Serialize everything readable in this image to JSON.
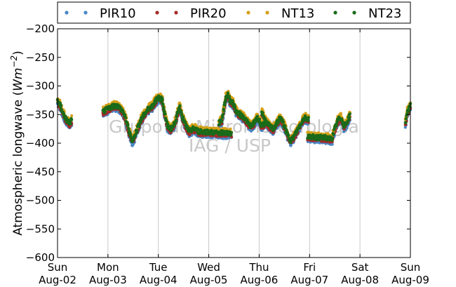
{
  "chart_data": {
    "type": "scatter",
    "ylabel_text": "Atmospheric longwave (",
    "ylabel_unit_base": "Wm",
    "ylabel_unit_exp": "−2",
    "ylabel_close": ")",
    "ylim": [
      -600,
      -200
    ],
    "yticks": [
      -200,
      -250,
      -300,
      -350,
      -400,
      -450,
      -500,
      -550,
      -600
    ],
    "ytick_labels": [
      "−200",
      "−250",
      "−300",
      "−350",
      "−400",
      "−450",
      "−500",
      "−550",
      "−600"
    ],
    "xlim": [
      0,
      7
    ],
    "xticks": [
      {
        "day": "Sun",
        "date": "Aug-02"
      },
      {
        "day": "Mon",
        "date": "Aug-03"
      },
      {
        "day": "Tue",
        "date": "Aug-04"
      },
      {
        "day": "Wed",
        "date": "Aug-05"
      },
      {
        "day": "Thu",
        "date": "Aug-06"
      },
      {
        "day": "Fri",
        "date": "Aug-07"
      },
      {
        "day": "Sat",
        "date": "Aug-08"
      },
      {
        "day": "Sun",
        "date": "Aug-09"
      }
    ],
    "grid": "vertical",
    "legend_position": "top",
    "watermark": [
      "Grupo de Micrometeorologia",
      "IAG / USP"
    ],
    "series": [
      {
        "name": "PIR10",
        "color": "#4a86c5",
        "offset": -6
      },
      {
        "name": "PIR20",
        "color": "#a52a2a",
        "offset": -3
      },
      {
        "name": "NT13",
        "color": "#d4a017",
        "offset": 4
      },
      {
        "name": "NT23",
        "color": "#1a6b1a",
        "offset": 0
      }
    ],
    "segments": [
      {
        "x": [
          0.0,
          0.06,
          0.12,
          0.18,
          0.24,
          0.28
        ],
        "y": [
          -325,
          -335,
          -350,
          -360,
          -365,
          -360
        ]
      },
      {
        "x": [
          0.9,
          1.0,
          1.1,
          1.2,
          1.3,
          1.36,
          1.42,
          1.48,
          1.52,
          1.58,
          1.65,
          1.72,
          1.8,
          1.88,
          1.95,
          2.02,
          2.08,
          2.12
        ],
        "y": [
          -345,
          -340,
          -335,
          -335,
          -345,
          -360,
          -380,
          -395,
          -390,
          -375,
          -360,
          -350,
          -340,
          -335,
          -325,
          -320,
          -325,
          -345
        ]
      },
      {
        "x": [
          2.12,
          2.18,
          2.24,
          2.3,
          2.36,
          2.42,
          2.48,
          2.55,
          2.62,
          2.68,
          2.74,
          2.8,
          2.84
        ],
        "y": [
          -345,
          -370,
          -375,
          -370,
          -355,
          -335,
          -355,
          -370,
          -380,
          -375,
          -375,
          -380,
          -378
        ]
      },
      {
        "x": [
          2.84,
          2.95,
          3.05,
          3.15,
          3.25,
          3.35,
          3.45
        ],
        "y": [
          -380,
          -380,
          -381,
          -382,
          -382,
          -382,
          -383
        ]
      },
      {
        "x": [
          3.2,
          3.26,
          3.3,
          3.34,
          3.38,
          3.42,
          3.48,
          3.55,
          3.62,
          3.7,
          3.78,
          3.84,
          3.9,
          3.95,
          4.0,
          4.05,
          4.12
        ],
        "y": [
          -365,
          -360,
          -340,
          -320,
          -315,
          -325,
          -330,
          -345,
          -350,
          -355,
          -365,
          -370,
          -365,
          -355,
          -360,
          -370,
          -365
        ]
      },
      {
        "x": [
          4.05,
          4.12,
          4.2,
          4.28,
          4.35,
          4.42,
          4.5,
          4.56,
          4.62,
          4.68,
          4.74
        ],
        "y": [
          -345,
          -360,
          -370,
          -375,
          -365,
          -355,
          -370,
          -385,
          -395,
          -390,
          -380
        ]
      },
      {
        "x": [
          4.74,
          4.8,
          4.86,
          4.92,
          4.98
        ],
        "y": [
          -380,
          -370,
          -360,
          -355,
          -358
        ]
      },
      {
        "x": [
          4.96,
          5.05,
          5.15,
          5.25,
          5.35,
          5.4,
          5.45
        ],
        "y": [
          -388,
          -389,
          -390,
          -390,
          -391,
          -392,
          -393
        ]
      },
      {
        "x": [
          5.45,
          5.5,
          5.56,
          5.62,
          5.68,
          5.74,
          5.8
        ],
        "y": [
          -390,
          -375,
          -360,
          -355,
          -370,
          -365,
          -350
        ]
      },
      {
        "x": [
          6.9,
          6.94,
          6.97,
          7.0
        ],
        "y": [
          -365,
          -345,
          -340,
          -335
        ]
      }
    ]
  }
}
